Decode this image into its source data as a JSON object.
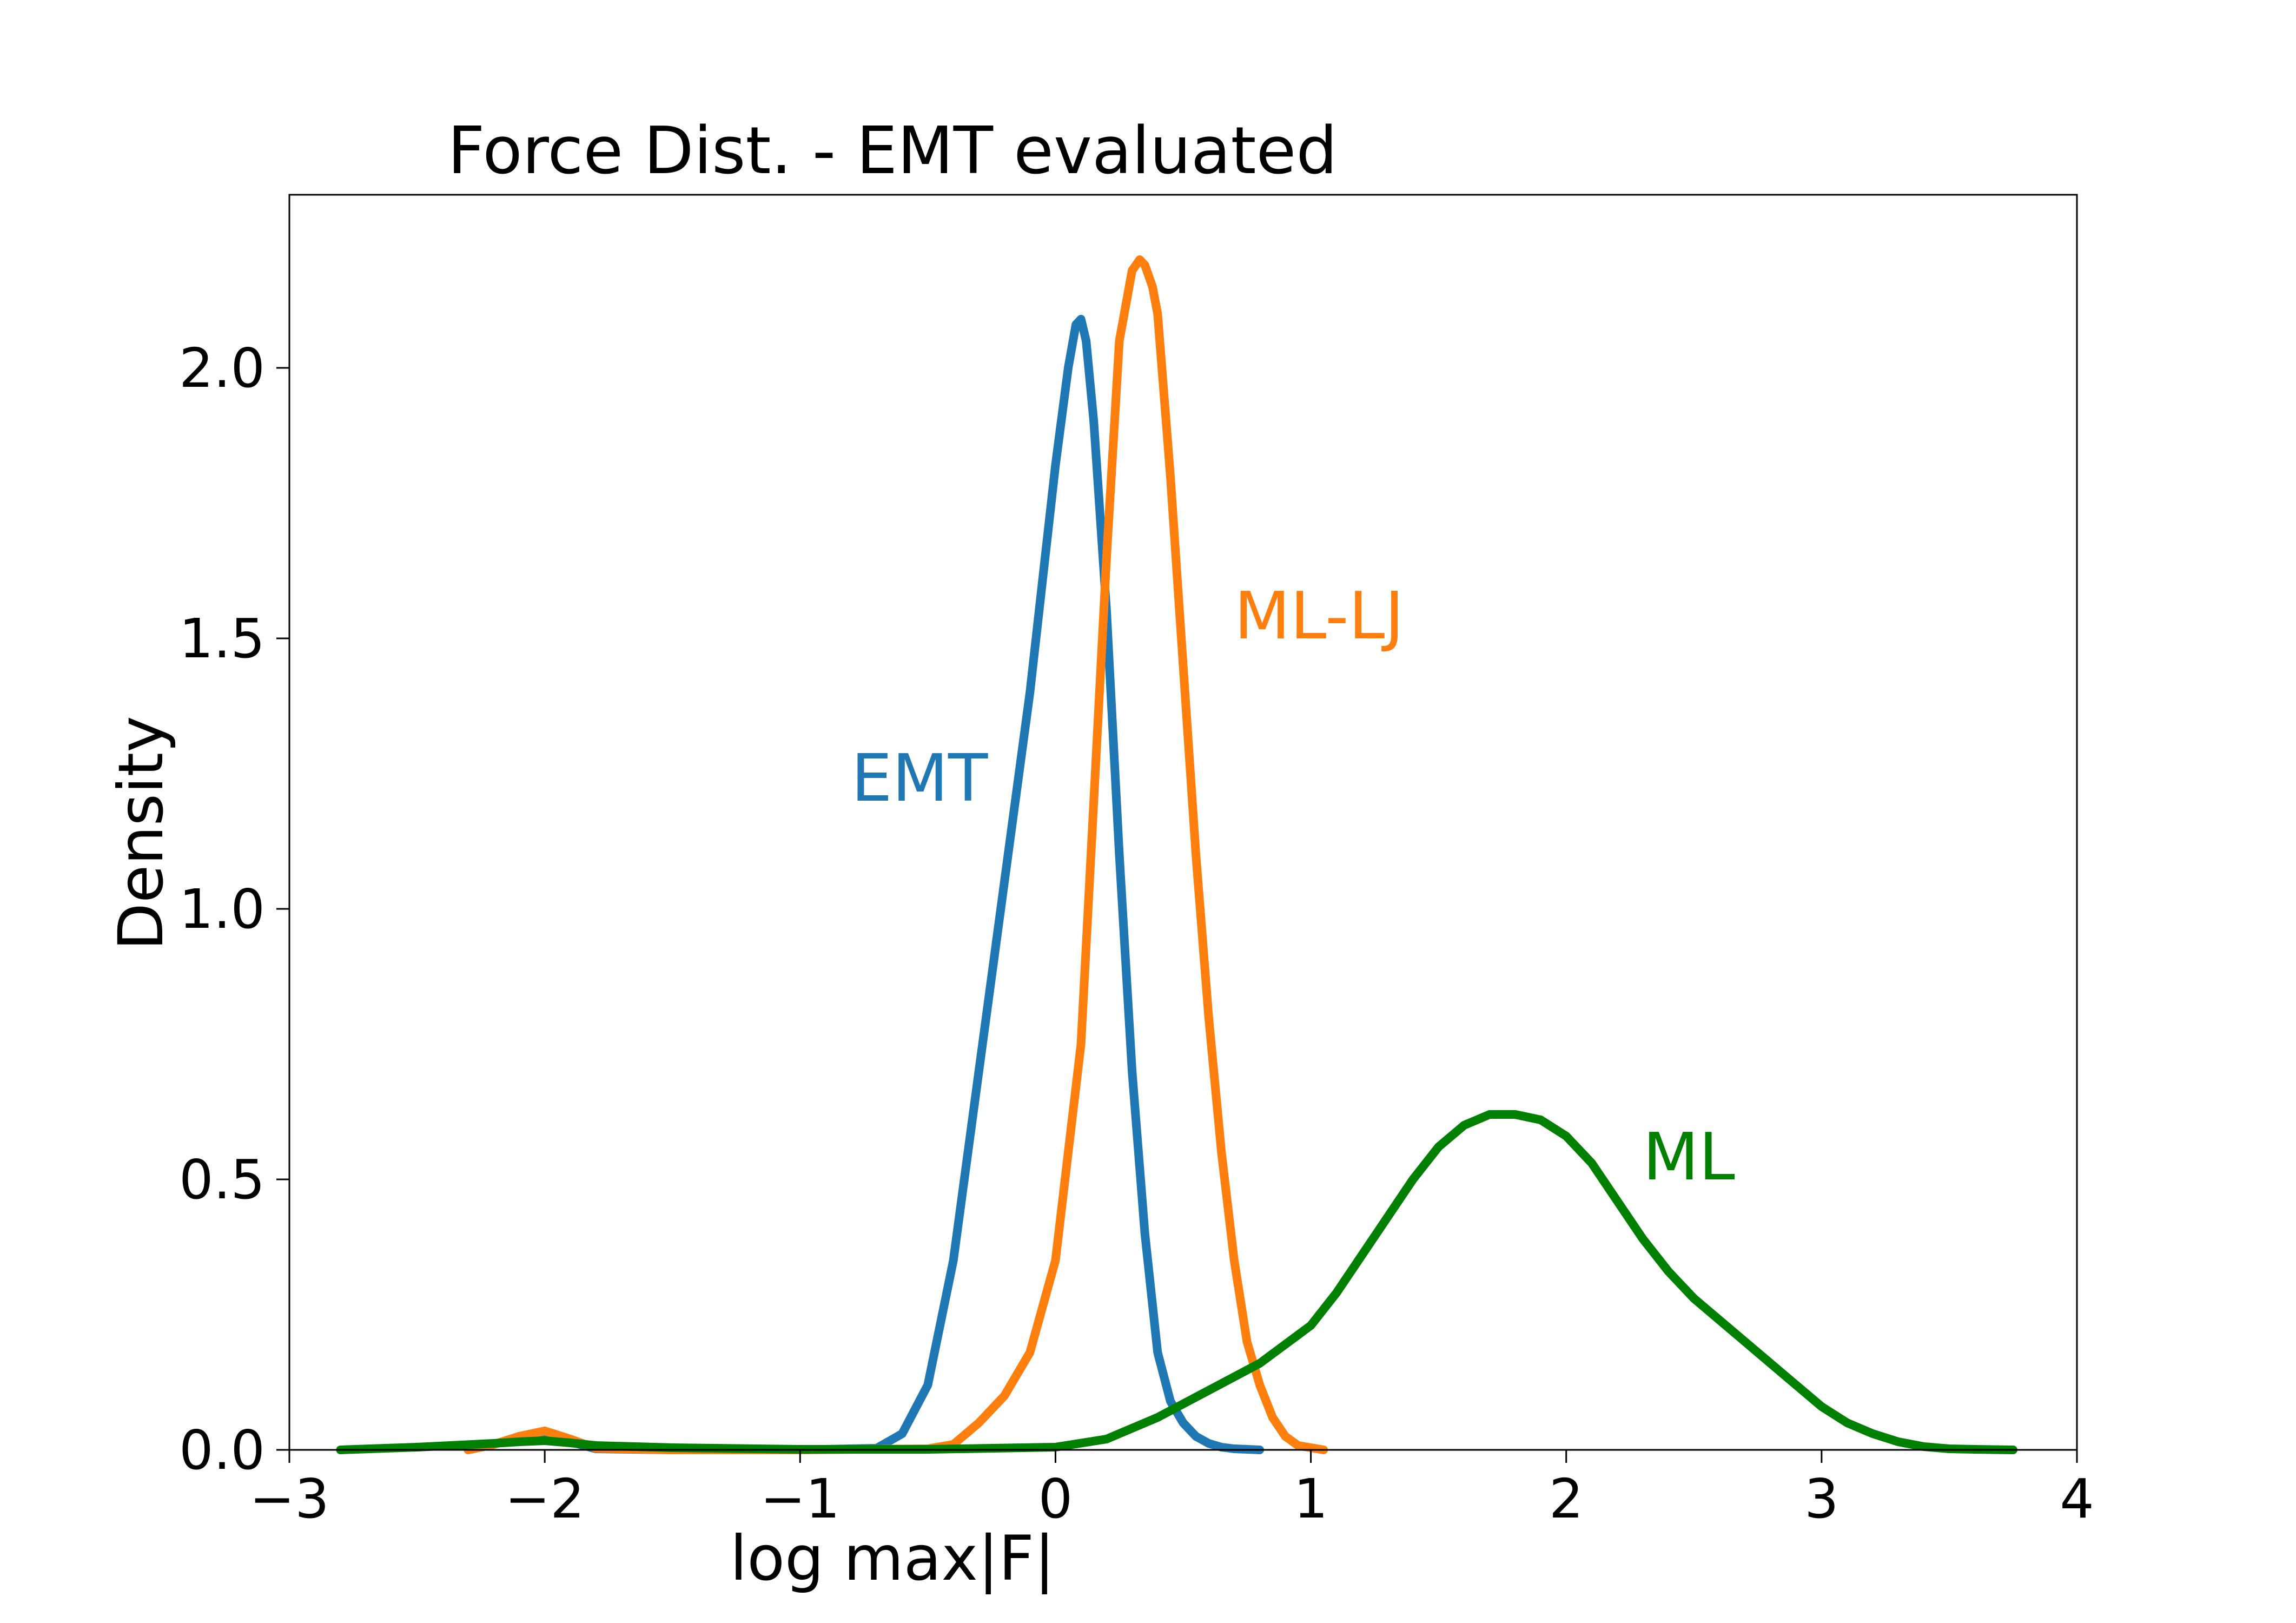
{
  "chart_data": {
    "type": "line",
    "title": "Force Dist. - EMT evaluated",
    "xlabel": "log max|F|",
    "ylabel": "Density",
    "xlim": [
      -3,
      4
    ],
    "ylim": [
      0,
      2.32
    ],
    "xticks": [
      -3,
      -2,
      -1,
      0,
      1,
      2,
      3,
      4
    ],
    "xtick_labels": [
      "−3",
      "−2",
      "−1",
      "0",
      "1",
      "2",
      "3",
      "4"
    ],
    "yticks": [
      0.0,
      0.5,
      1.0,
      1.5,
      2.0
    ],
    "ytick_labels": [
      "0.0",
      "0.5",
      "1.0",
      "1.5",
      "2.0"
    ],
    "grid": false,
    "legend": "none",
    "series": [
      {
        "name": "EMT",
        "color": "#1f77b4",
        "label_anchor": [
          -0.8,
          1.2
        ],
        "x": [
          -2.3,
          -2.2,
          -2.1,
          -2.0,
          -1.9,
          -1.8,
          -1.5,
          -1.0,
          -0.7,
          -0.6,
          -0.5,
          -0.4,
          -0.3,
          -0.2,
          -0.1,
          0.0,
          0.05,
          0.08,
          0.1,
          0.12,
          0.15,
          0.2,
          0.25,
          0.3,
          0.35,
          0.4,
          0.45,
          0.5,
          0.55,
          0.6,
          0.65,
          0.7,
          0.8
        ],
        "y": [
          0.0,
          0.01,
          0.025,
          0.03,
          0.015,
          0.002,
          0.0,
          0.0,
          0.003,
          0.03,
          0.12,
          0.35,
          0.7,
          1.05,
          1.4,
          1.82,
          2.0,
          2.08,
          2.09,
          2.05,
          1.9,
          1.55,
          1.1,
          0.7,
          0.4,
          0.18,
          0.09,
          0.05,
          0.025,
          0.012,
          0.005,
          0.002,
          0.0
        ]
      },
      {
        "name": "ML-LJ",
        "color": "#ff7f0e",
        "label_anchor": [
          0.7,
          1.5
        ],
        "x": [
          -2.3,
          -2.2,
          -2.1,
          -2.0,
          -1.9,
          -1.8,
          -1.5,
          -1.0,
          -0.5,
          -0.4,
          -0.3,
          -0.2,
          -0.1,
          0.0,
          0.1,
          0.15,
          0.2,
          0.25,
          0.3,
          0.33,
          0.35,
          0.38,
          0.4,
          0.45,
          0.5,
          0.55,
          0.6,
          0.65,
          0.7,
          0.75,
          0.8,
          0.85,
          0.9,
          0.95,
          1.05
        ],
        "y": [
          0.0,
          0.01,
          0.025,
          0.035,
          0.02,
          0.003,
          0.0,
          0.0,
          0.002,
          0.01,
          0.05,
          0.1,
          0.18,
          0.35,
          0.75,
          1.2,
          1.65,
          2.05,
          2.18,
          2.2,
          2.19,
          2.15,
          2.1,
          1.8,
          1.45,
          1.1,
          0.8,
          0.55,
          0.35,
          0.2,
          0.12,
          0.06,
          0.025,
          0.008,
          0.0
        ]
      },
      {
        "name": "ML",
        "color": "#008000",
        "label_anchor": [
          2.3,
          0.5
        ],
        "x": [
          -2.8,
          -2.5,
          -2.2,
          -2.1,
          -2.0,
          -1.9,
          -1.8,
          -1.5,
          -1.0,
          -0.5,
          0.0,
          0.2,
          0.4,
          0.6,
          0.8,
          1.0,
          1.1,
          1.2,
          1.3,
          1.4,
          1.5,
          1.6,
          1.7,
          1.8,
          1.9,
          2.0,
          2.1,
          2.2,
          2.3,
          2.4,
          2.5,
          2.6,
          2.7,
          2.8,
          2.9,
          3.0,
          3.1,
          3.2,
          3.3,
          3.4,
          3.5,
          3.6,
          3.75
        ],
        "y": [
          0.0,
          0.005,
          0.012,
          0.015,
          0.017,
          0.013,
          0.008,
          0.004,
          0.001,
          0.001,
          0.005,
          0.02,
          0.06,
          0.11,
          0.16,
          0.23,
          0.29,
          0.36,
          0.43,
          0.5,
          0.56,
          0.6,
          0.62,
          0.62,
          0.61,
          0.58,
          0.53,
          0.46,
          0.39,
          0.33,
          0.28,
          0.24,
          0.2,
          0.16,
          0.12,
          0.08,
          0.05,
          0.03,
          0.015,
          0.006,
          0.002,
          0.001,
          0.0
        ]
      }
    ]
  }
}
